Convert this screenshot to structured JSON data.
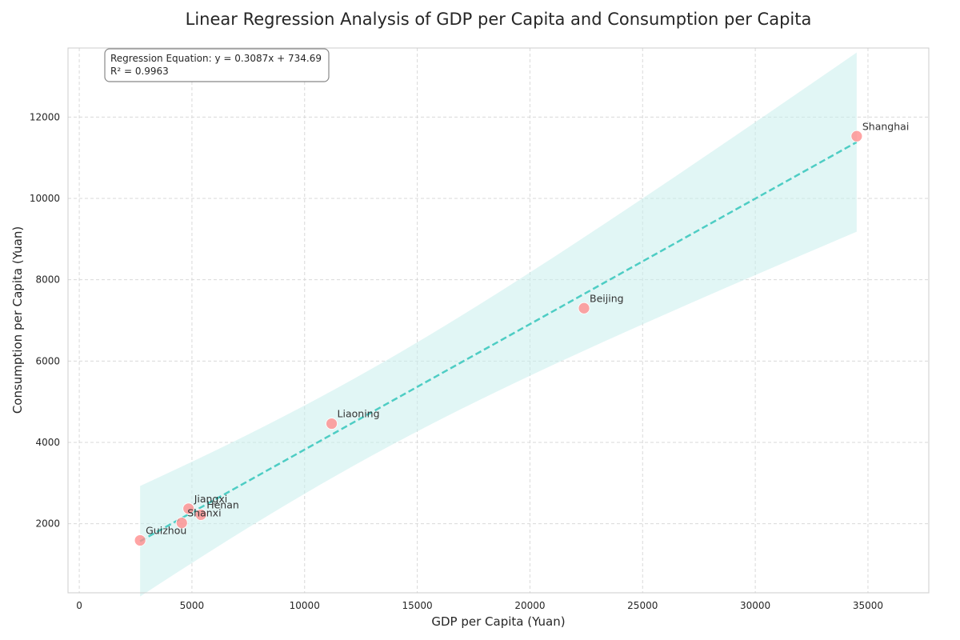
{
  "chart_data": {
    "type": "scatter",
    "title": "Linear Regression Analysis of GDP per Capita and Consumption per Capita",
    "xlabel": "GDP per Capita (Yuan)",
    "ylabel": "Consumption per Capita (Yuan)",
    "xlim": [
      -500,
      37700
    ],
    "ylim": [
      300,
      13700
    ],
    "x_ticks": [
      0,
      5000,
      10000,
      15000,
      20000,
      25000,
      30000,
      35000
    ],
    "y_ticks": [
      2000,
      4000,
      6000,
      8000,
      10000,
      12000
    ],
    "grid": true,
    "points": [
      {
        "label": "Guizhou",
        "x": 2700,
        "y": 1590
      },
      {
        "label": "Shanxi",
        "x": 4550,
        "y": 2020
      },
      {
        "label": "Jiangxi",
        "x": 4850,
        "y": 2370
      },
      {
        "label": "Henan",
        "x": 5400,
        "y": 2220
      },
      {
        "label": "Liaoning",
        "x": 11200,
        "y": 4460
      },
      {
        "label": "Beijing",
        "x": 22400,
        "y": 7300
      },
      {
        "label": "Shanghai",
        "x": 34500,
        "y": 11530
      }
    ],
    "regression": {
      "slope": 0.3087,
      "intercept": 734.69,
      "equation_text": "Regression Equation: y = 0.3087x + 734.69",
      "r2_text": "R² = 0.9963"
    },
    "colors": {
      "point": "#ff8a8a",
      "line": "#4ecdc4",
      "band": "#c9eeec"
    }
  }
}
